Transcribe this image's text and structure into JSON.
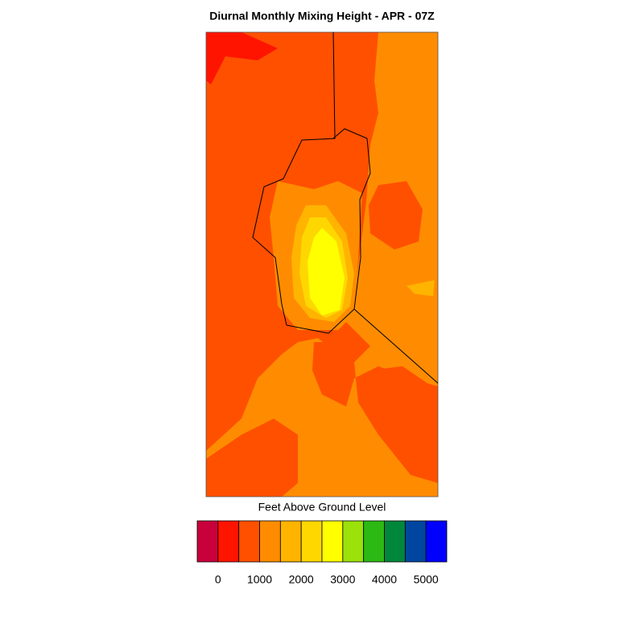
{
  "title": "Diurnal Monthly Mixing Height - APR - 07Z",
  "colorbar": {
    "label": "Feet Above Ground Level",
    "colors": [
      "#c8003c",
      "#ff1400",
      "#ff5000",
      "#ff8c00",
      "#ffb400",
      "#ffd700",
      "#ffff00",
      "#9be10a",
      "#2db914",
      "#00873c",
      "#0046a0",
      "#0000ff"
    ],
    "ticks": [
      0,
      1000,
      2000,
      3000,
      4000,
      5000
    ]
  }
}
